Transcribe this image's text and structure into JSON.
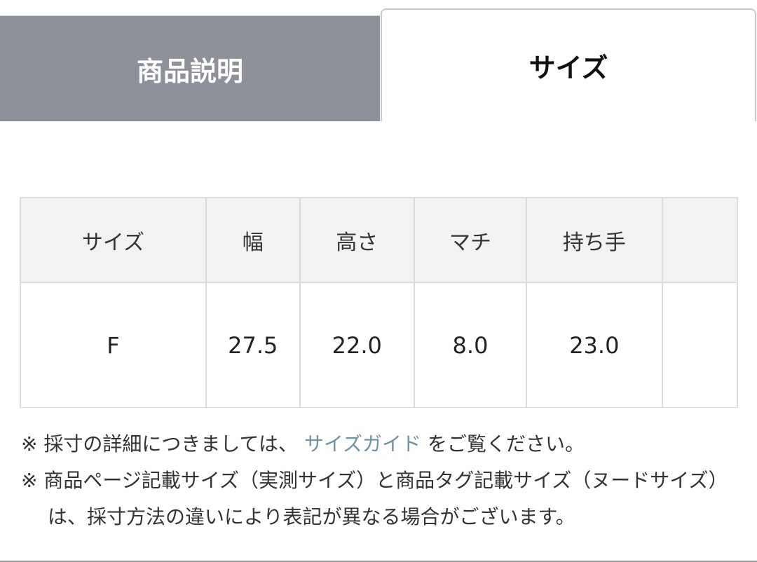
{
  "tabs": [
    {
      "label": "商品説明",
      "active": false
    },
    {
      "label": "サイズ",
      "active": true
    }
  ],
  "table": {
    "headers": [
      "サイズ",
      "幅",
      "高さ",
      "マチ",
      "持ち手",
      ""
    ],
    "rows": [
      [
        "F",
        "27.5",
        "22.0",
        "8.0",
        "23.0",
        ""
      ]
    ]
  },
  "notes": {
    "note1_prefix": "※ 採寸の詳細につきましては、",
    "note1_link": "サイズガイド",
    "note1_suffix": "をご覧ください。",
    "note2": "※ 商品ページ記載サイズ（実測サイズ）と商品タグ記載サイズ（ヌードサイズ）は、採寸方法の違いにより表記が異なる場合がございます。"
  },
  "colors": {
    "inactive_tab": "#8e9199",
    "link": "#6e93a6",
    "header_bg": "#f2f2f4"
  }
}
